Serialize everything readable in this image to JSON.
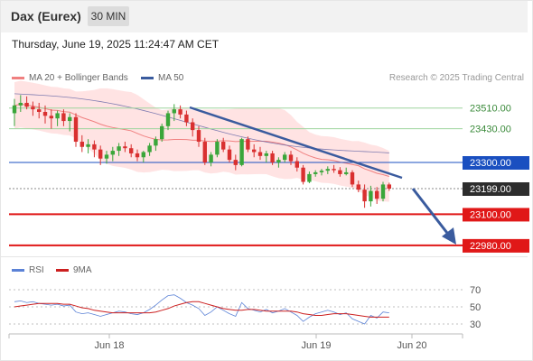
{
  "header": {
    "title": "Dax (Eurex)",
    "timeframe": "30 MIN"
  },
  "datetime": "Thursday, June 19, 2025 11:24:47 AM CET",
  "legend": {
    "bollinger": "MA 20 + Bollinger Bands",
    "ma50": "MA 50",
    "credit": "Research © 2025 Trading Central"
  },
  "rsi_legend": {
    "rsi": "RSI",
    "ma9": "9MA"
  },
  "colors": {
    "up": "#3aa63a",
    "down": "#d93030",
    "band": "#ffd9d9",
    "ma20": "#f08080",
    "ma50": "#6a6aa8",
    "trend": "#3a5b9e",
    "support": "#e01818",
    "pivot": "#1a4fc0",
    "resistance": "#9dd49d",
    "last": "#333333",
    "rsi": "#5b82d6",
    "rsi_ma": "#cc2020"
  },
  "chart_data": [
    {
      "type": "candlestick",
      "title": "Dax (Eurex)",
      "timeframe": "30 MIN",
      "x_ticks": [
        "Jun 18",
        "Jun 19",
        "Jun 20"
      ],
      "levels": [
        {
          "value": 23510.0,
          "label": "23510.00",
          "kind": "resistance"
        },
        {
          "value": 23430.0,
          "label": "23430.00",
          "kind": "resistance"
        },
        {
          "value": 23300.0,
          "label": "23300.00",
          "kind": "pivot"
        },
        {
          "value": 23199.0,
          "label": "23199.00",
          "kind": "last"
        },
        {
          "value": 23100.0,
          "label": "23100.00",
          "kind": "support"
        },
        {
          "value": 22980.0,
          "label": "22980.00",
          "kind": "support"
        }
      ],
      "last_price": 23199.0,
      "ohlc": [
        [
          23490,
          23545,
          23440,
          23520
        ],
        [
          23520,
          23560,
          23495,
          23530
        ],
        [
          23530,
          23555,
          23505,
          23515
        ],
        [
          23515,
          23535,
          23480,
          23505
        ],
        [
          23505,
          23530,
          23470,
          23495
        ],
        [
          23495,
          23520,
          23450,
          23480
        ],
        [
          23480,
          23505,
          23430,
          23470
        ],
        [
          23470,
          23500,
          23440,
          23490
        ],
        [
          23490,
          23505,
          23440,
          23460
        ],
        [
          23460,
          23490,
          23420,
          23475
        ],
        [
          23475,
          23490,
          23360,
          23380
        ],
        [
          23380,
          23405,
          23340,
          23360
        ],
        [
          23360,
          23390,
          23335,
          23370
        ],
        [
          23370,
          23385,
          23320,
          23350
        ],
        [
          23350,
          23365,
          23290,
          23315
        ],
        [
          23315,
          23345,
          23295,
          23330
        ],
        [
          23330,
          23360,
          23305,
          23345
        ],
        [
          23345,
          23375,
          23325,
          23362
        ],
        [
          23362,
          23380,
          23340,
          23355
        ],
        [
          23355,
          23370,
          23320,
          23335
        ],
        [
          23335,
          23350,
          23305,
          23320
        ],
        [
          23320,
          23345,
          23300,
          23340
        ],
        [
          23340,
          23375,
          23325,
          23365
        ],
        [
          23365,
          23400,
          23345,
          23390
        ],
        [
          23390,
          23450,
          23380,
          23440
        ],
        [
          23440,
          23500,
          23425,
          23490
        ],
        [
          23490,
          23525,
          23460,
          23505
        ],
        [
          23505,
          23520,
          23470,
          23485
        ],
        [
          23485,
          23500,
          23440,
          23455
        ],
        [
          23455,
          23470,
          23400,
          23425
        ],
        [
          23425,
          23440,
          23360,
          23380
        ],
        [
          23380,
          23395,
          23290,
          23300
        ],
        [
          23300,
          23340,
          23285,
          23330
        ],
        [
          23330,
          23390,
          23320,
          23380
        ],
        [
          23380,
          23395,
          23340,
          23350
        ],
        [
          23350,
          23365,
          23300,
          23310
        ],
        [
          23310,
          23330,
          23270,
          23290
        ],
        [
          23290,
          23395,
          23285,
          23390
        ],
        [
          23390,
          23400,
          23340,
          23350
        ],
        [
          23350,
          23370,
          23320,
          23340
        ],
        [
          23340,
          23360,
          23310,
          23325
        ],
        [
          23325,
          23345,
          23300,
          23335
        ],
        [
          23335,
          23345,
          23290,
          23300
        ],
        [
          23300,
          23320,
          23280,
          23310
        ],
        [
          23310,
          23340,
          23300,
          23330
        ],
        [
          23330,
          23345,
          23290,
          23305
        ],
        [
          23305,
          23320,
          23265,
          23280
        ],
        [
          23280,
          23290,
          23215,
          23225
        ],
        [
          23225,
          23265,
          23220,
          23255
        ],
        [
          23255,
          23270,
          23245,
          23262
        ],
        [
          23262,
          23275,
          23250,
          23268
        ],
        [
          23268,
          23285,
          23255,
          23275
        ],
        [
          23275,
          23290,
          23260,
          23270
        ],
        [
          23270,
          23282,
          23245,
          23255
        ],
        [
          23255,
          23280,
          23250,
          23262
        ],
        [
          23262,
          23270,
          23205,
          23215
        ],
        [
          23215,
          23230,
          23185,
          23195
        ],
        [
          23195,
          23215,
          23125,
          23150
        ],
        [
          23150,
          23210,
          23130,
          23190
        ],
        [
          23190,
          23205,
          23140,
          23160
        ],
        [
          23160,
          23225,
          23150,
          23215
        ],
        [
          23215,
          23222,
          23190,
          23199
        ]
      ]
    },
    {
      "type": "line",
      "title": "RSI",
      "y_ticks": [
        70,
        50,
        30
      ],
      "ylim": [
        20,
        80
      ],
      "series": [
        {
          "name": "RSI",
          "values": [
            56,
            57,
            55,
            56,
            54,
            53,
            52,
            53,
            51,
            52,
            44,
            42,
            43,
            41,
            39,
            41,
            43,
            45,
            44,
            42,
            41,
            43,
            47,
            52,
            58,
            63,
            64,
            60,
            55,
            52,
            48,
            40,
            44,
            50,
            46,
            42,
            39,
            55,
            48,
            46,
            44,
            47,
            43,
            45,
            48,
            44,
            40,
            33,
            38,
            42,
            44,
            46,
            44,
            41,
            43,
            36,
            33,
            30,
            40,
            37,
            44,
            43
          ]
        },
        {
          "name": "9MA",
          "values": [
            50,
            51,
            52,
            53,
            54,
            54,
            54,
            54,
            53,
            53,
            51,
            49,
            48,
            46,
            45,
            44,
            43,
            43,
            43,
            43,
            43,
            43,
            43,
            44,
            46,
            48,
            51,
            53,
            55,
            56,
            56,
            54,
            52,
            50,
            48,
            47,
            46,
            46,
            47,
            47,
            46,
            45,
            45,
            45,
            45,
            45,
            44,
            42,
            41,
            40,
            40,
            41,
            42,
            42,
            42,
            41,
            40,
            39,
            38,
            38,
            38,
            38
          ]
        }
      ]
    }
  ]
}
